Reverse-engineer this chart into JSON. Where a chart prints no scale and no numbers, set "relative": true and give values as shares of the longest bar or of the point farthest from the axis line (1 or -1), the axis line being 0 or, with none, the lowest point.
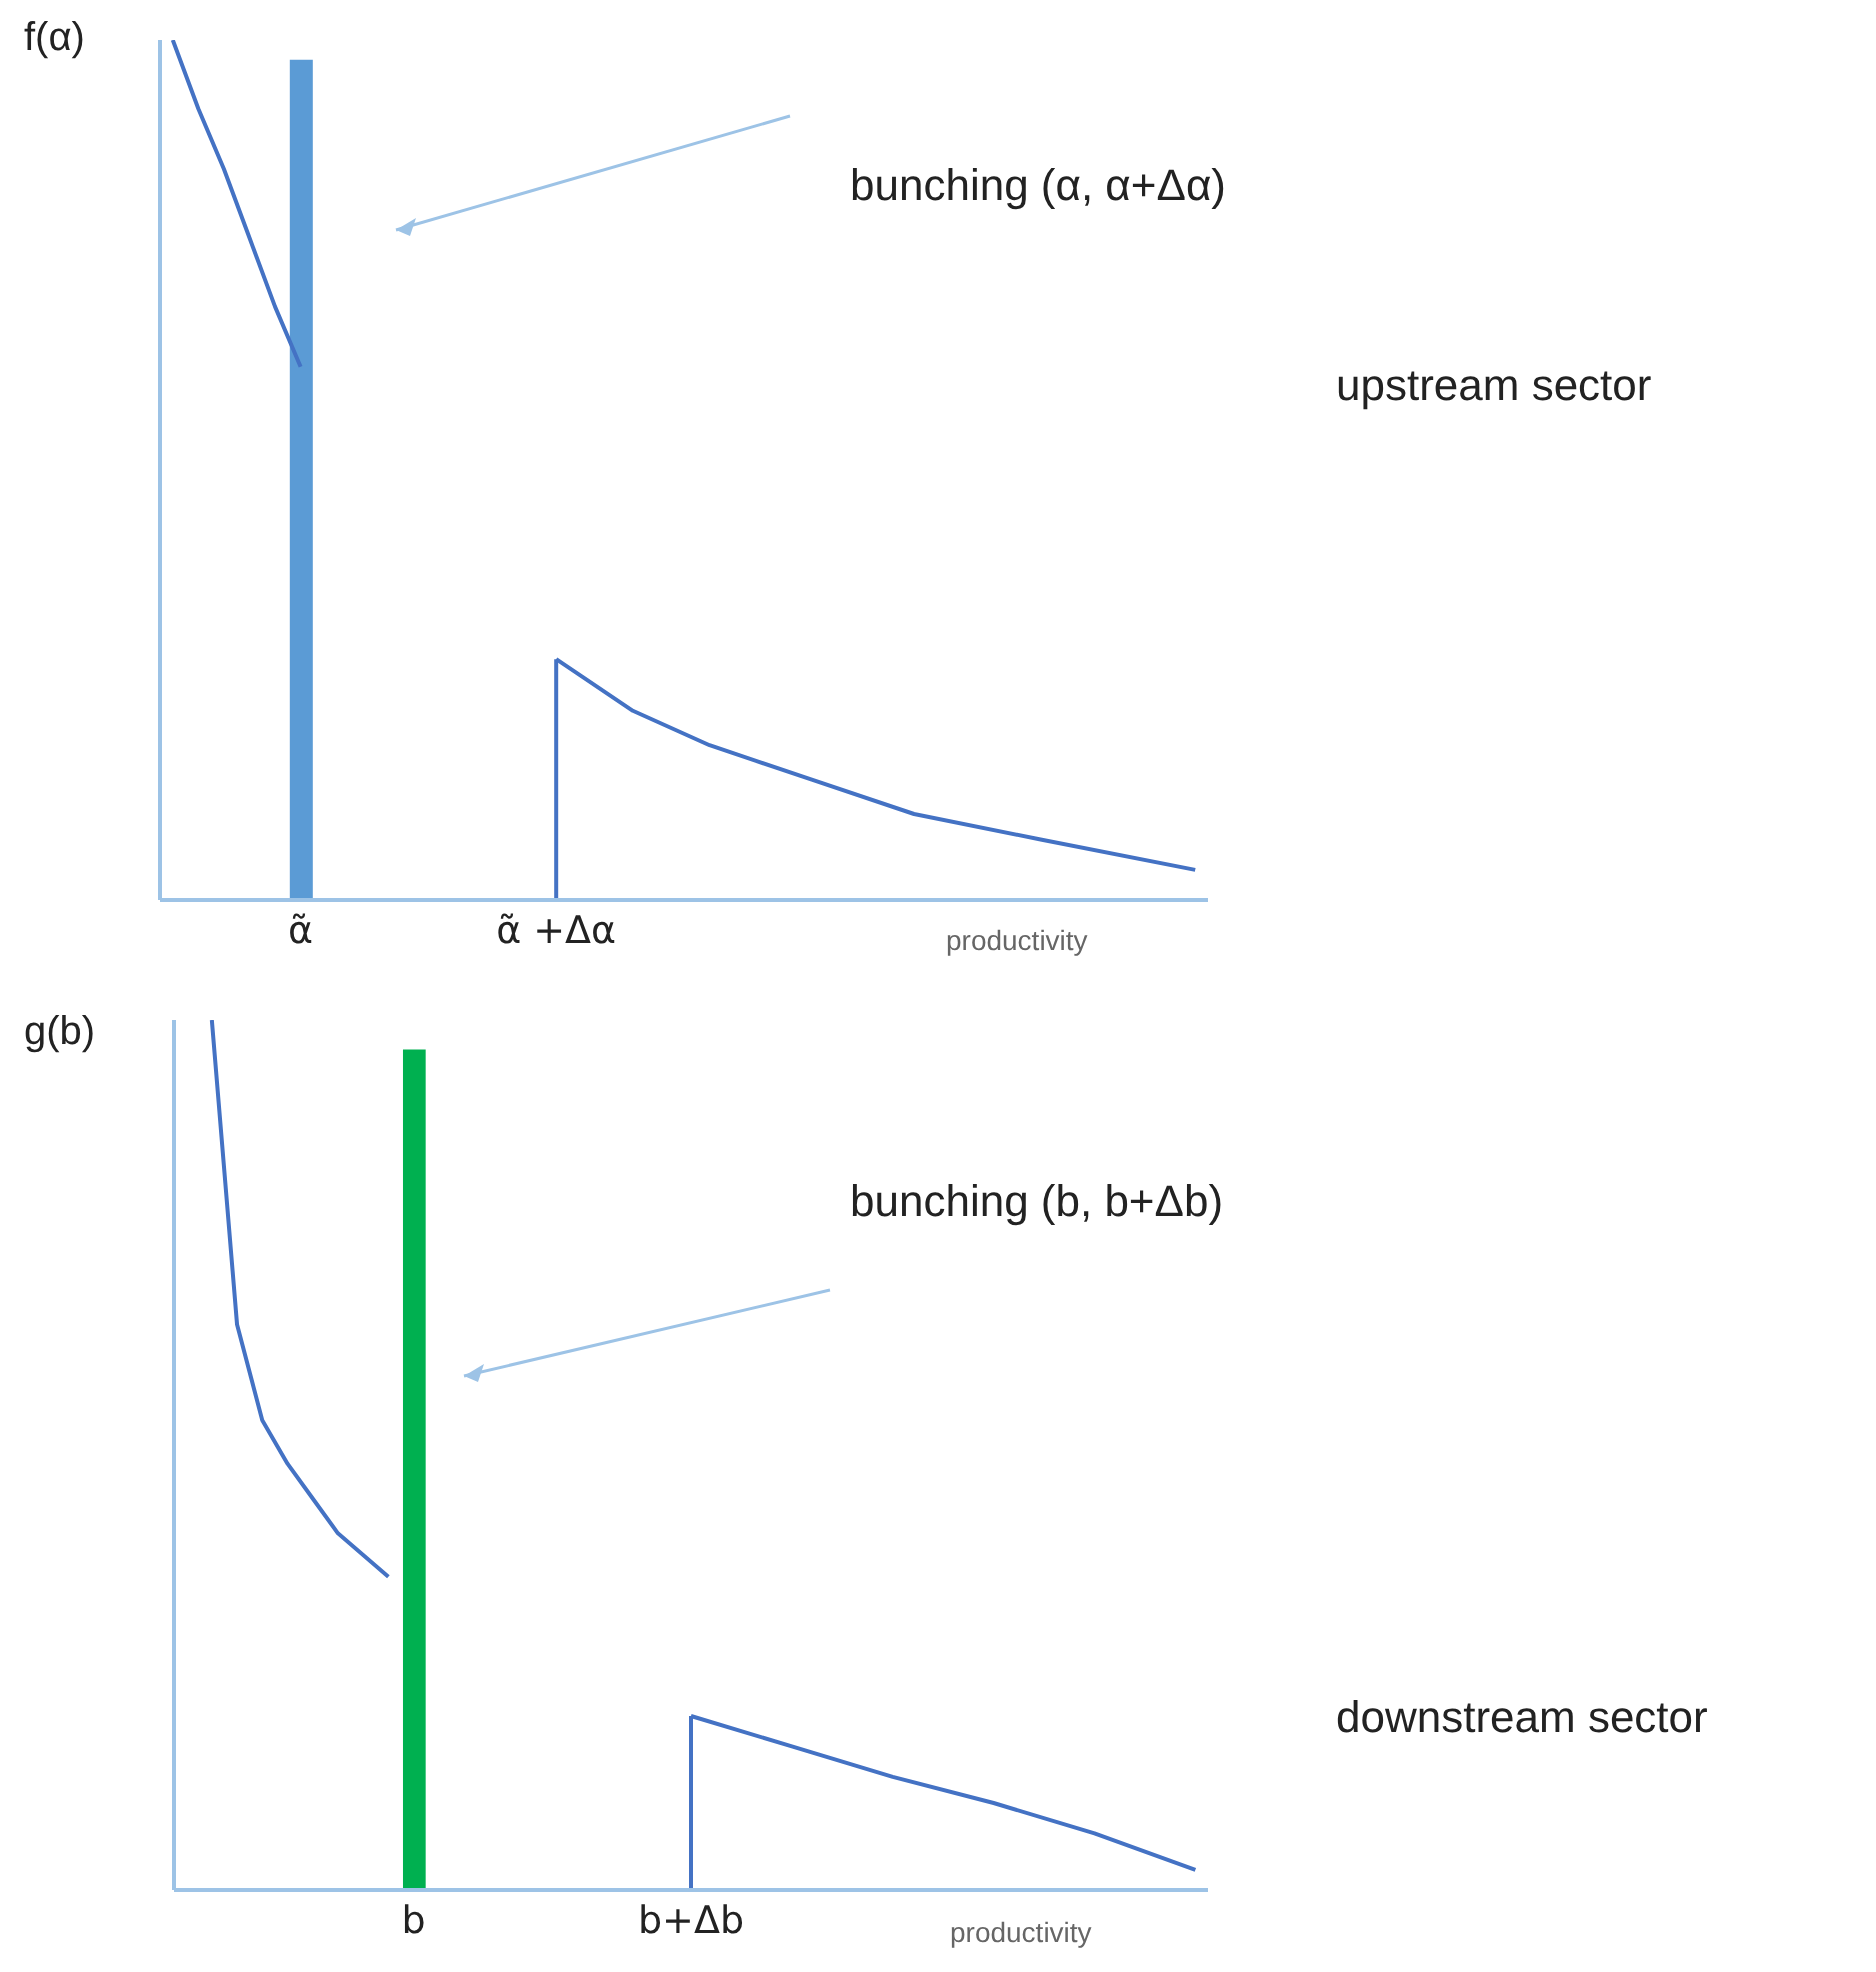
{
  "chart_data": [
    {
      "type": "line",
      "ylabel": "f(α)",
      "xlabel": "productivity",
      "relative": true,
      "annotations": [
        "bunching (α, α+Δα)",
        "upstream sector"
      ],
      "categories": [
        null,
        null,
        null,
        null,
        null,
        "α̃",
        null,
        null,
        null,
        null,
        null,
        null,
        null,
        null,
        null,
        "α̃ +Δα",
        null,
        null,
        null,
        null,
        null,
        null,
        null,
        null,
        null,
        null,
        null,
        null,
        null,
        null,
        null,
        null,
        null,
        null,
        null,
        null,
        null,
        null,
        null,
        null,
        null
      ],
      "series": [
        {
          "type": "bar",
          "color": "#5b9bd5",
          "values": [
            null,
            null,
            null,
            null,
            null,
            0.977,
            null,
            null,
            null,
            null,
            null,
            null,
            null,
            null,
            null,
            null,
            null,
            null,
            null,
            null,
            null,
            null,
            null,
            null,
            null,
            null,
            null,
            null,
            null,
            null,
            null,
            null,
            null,
            null,
            null,
            null,
            null,
            null,
            null,
            null,
            null
          ]
        },
        {
          "color": "#4472c4",
          "values": [
            1.0,
            0.92,
            0.85,
            0.77,
            0.69,
            0.62,
            null,
            null,
            null,
            null,
            null,
            null,
            null,
            null,
            null,
            null,
            null,
            null,
            null,
            null,
            null,
            null,
            null,
            null,
            null,
            null,
            null,
            null,
            null,
            null,
            null,
            null,
            null,
            null,
            null,
            null,
            null,
            null,
            null,
            null,
            null
          ]
        },
        {
          "type": "step",
          "color": "#4472c4",
          "values": [
            null,
            null,
            null,
            null,
            null,
            null,
            null,
            null,
            null,
            null,
            null,
            null,
            null,
            null,
            0,
            0.28,
            null,
            null,
            null,
            null,
            null,
            null,
            null,
            null,
            null,
            null,
            null,
            null,
            null,
            null,
            null,
            null,
            null,
            null,
            null,
            null,
            null,
            null,
            null,
            null,
            null
          ]
        },
        {
          "color": "#4472c4",
          "values": [
            null,
            null,
            null,
            null,
            null,
            null,
            null,
            null,
            null,
            null,
            null,
            null,
            null,
            null,
            null,
            0.28,
            0.26,
            null,
            0.22,
            null,
            null,
            0.18,
            null,
            null,
            null,
            0.14,
            null,
            null,
            null,
            0.1,
            null,
            null,
            null,
            null,
            0.07,
            null,
            null,
            null,
            null,
            null,
            0.035
          ]
        }
      ]
    },
    {
      "type": "line",
      "ylabel": "g(b)",
      "xlabel": "productivity",
      "relative": true,
      "annotations": [
        "bunching (b, b+Δb)",
        "downstream sector"
      ],
      "categories": [
        null,
        null,
        null,
        null,
        null,
        null,
        null,
        null,
        null,
        "b",
        null,
        null,
        null,
        null,
        null,
        null,
        null,
        null,
        null,
        null,
        "b+Δb",
        null,
        null,
        null,
        null,
        null,
        null,
        null,
        null,
        null,
        null,
        null,
        null,
        null,
        null,
        null,
        null,
        null,
        null,
        null,
        null
      ],
      "series": [
        {
          "type": "bar",
          "color": "#00b050",
          "values": [
            null,
            null,
            null,
            null,
            null,
            null,
            null,
            null,
            null,
            0.966,
            null,
            null,
            null,
            null,
            null,
            null,
            null,
            null,
            null,
            null,
            null,
            null,
            null,
            null,
            null,
            null,
            null,
            null,
            null,
            null,
            null,
            null,
            null,
            null,
            null,
            null,
            null,
            null,
            null,
            null,
            null
          ]
        },
        {
          "color": "#4472c4",
          "values": [
            null,
            1.0,
            0.65,
            0.54,
            0.49,
            0.45,
            0.41,
            0.385,
            0.36,
            null,
            null,
            null,
            null,
            null,
            null,
            null,
            null,
            null,
            null,
            null,
            null,
            null,
            null,
            null,
            null,
            null,
            null,
            null,
            null,
            null,
            null,
            null,
            null,
            null,
            null,
            null,
            null,
            null,
            null,
            null,
            null
          ]
        },
        {
          "type": "step",
          "color": "#4472c4",
          "values": [
            null,
            null,
            null,
            null,
            null,
            null,
            null,
            null,
            null,
            null,
            null,
            null,
            null,
            null,
            null,
            null,
            null,
            null,
            null,
            0,
            0.2,
            null,
            null,
            null,
            null,
            null,
            null,
            null,
            null,
            null,
            null,
            null,
            null,
            null,
            null,
            null,
            null,
            null,
            null,
            null,
            null
          ]
        },
        {
          "color": "#4472c4",
          "values": [
            null,
            null,
            null,
            null,
            null,
            null,
            null,
            null,
            null,
            null,
            null,
            null,
            null,
            null,
            null,
            null,
            null,
            null,
            null,
            null,
            0.2,
            null,
            null,
            null,
            0.165,
            null,
            null,
            null,
            0.13,
            null,
            null,
            null,
            0.1,
            null,
            null,
            null,
            0.065,
            null,
            null,
            null,
            0.023
          ]
        }
      ]
    }
  ]
}
